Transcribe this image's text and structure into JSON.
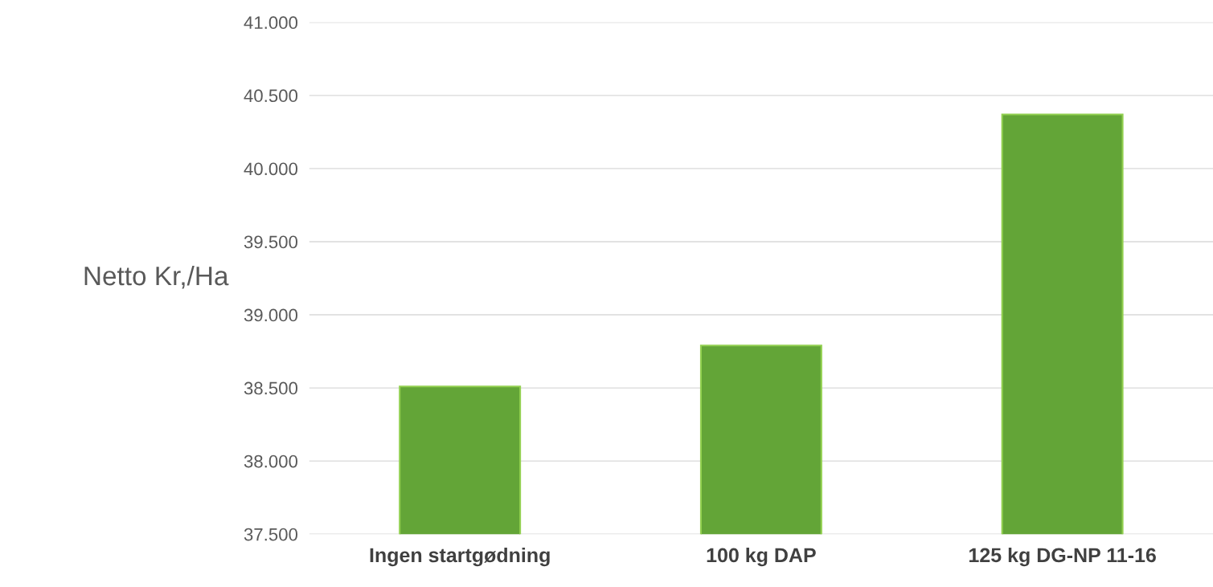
{
  "chart_data": {
    "type": "bar",
    "ylabel": "Netto Kr,/Ha",
    "categories": [
      "Ingen startgødning",
      "100 kg DAP",
      "125 kg DG-NP 11-16"
    ],
    "values": [
      38510,
      38790,
      40370
    ],
    "color": "#63a537",
    "ylim": [
      37500,
      41000
    ],
    "yticks": [
      {
        "value": 37500,
        "label": "37.500"
      },
      {
        "value": 38000,
        "label": "38.000"
      },
      {
        "value": 38500,
        "label": "38.500"
      },
      {
        "value": 39000,
        "label": "39.000"
      },
      {
        "value": 39500,
        "label": "39.500"
      },
      {
        "value": 40000,
        "label": "40.000"
      },
      {
        "value": 40500,
        "label": "40.500"
      },
      {
        "value": 41000,
        "label": "41.000"
      }
    ],
    "grid": "y",
    "legend": false
  }
}
